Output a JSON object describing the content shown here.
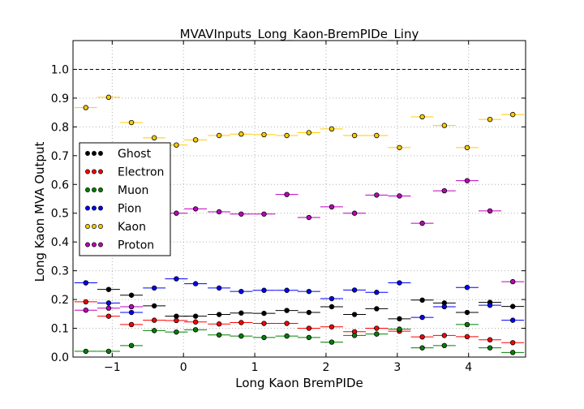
{
  "chart_data": {
    "type": "scatter",
    "title": "MVAVInputs_Long_Kaon-BremPIDe_Liny",
    "xlabel": "Long Kaon BremPIDe",
    "ylabel": "Long Kaon MVA Output",
    "xlim": [
      -1.55,
      4.8
    ],
    "ylim": [
      0.0,
      1.1
    ],
    "x_ticks": [
      -1,
      0,
      1,
      2,
      3,
      4
    ],
    "x_tick_labels": [
      "−1",
      "0",
      "1",
      "2",
      "3",
      "4"
    ],
    "y_ticks": [
      0.0,
      0.1,
      0.2,
      0.3,
      0.4,
      0.5,
      0.6,
      0.7,
      0.8,
      0.9,
      1.0
    ],
    "y_tick_labels": [
      "0.0",
      "0.1",
      "0.2",
      "0.3",
      "0.4",
      "0.5",
      "0.6",
      "0.7",
      "0.8",
      "0.9",
      "1.0"
    ],
    "grid": true,
    "legend_position": "left",
    "reference_line": 1.0,
    "bin_half_width": 0.159,
    "x": [
      -1.37,
      -1.05,
      -0.73,
      -0.41,
      -0.1,
      0.17,
      0.5,
      0.81,
      1.13,
      1.45,
      1.76,
      2.08,
      2.4,
      2.71,
      3.03,
      3.35,
      3.66,
      3.98,
      4.3,
      4.62
    ],
    "series": [
      {
        "name": "Ghost",
        "color": "#000000",
        "values": [
          0.258,
          0.235,
          0.215,
          0.178,
          0.142,
          0.142,
          0.148,
          0.153,
          0.152,
          0.162,
          0.155,
          0.175,
          0.148,
          0.168,
          0.133,
          0.198,
          0.188,
          0.155,
          0.19,
          0.176
        ]
      },
      {
        "name": "Electron",
        "color": "#ff0000",
        "values": [
          0.192,
          0.142,
          0.113,
          0.128,
          0.127,
          0.122,
          0.115,
          0.12,
          0.117,
          0.117,
          0.1,
          0.105,
          0.088,
          0.1,
          0.09,
          0.07,
          0.075,
          0.071,
          0.06,
          0.05
        ]
      },
      {
        "name": "Muon",
        "color": "#008000",
        "values": [
          0.02,
          0.02,
          0.04,
          0.092,
          0.087,
          0.095,
          0.077,
          0.073,
          0.068,
          0.073,
          0.068,
          0.052,
          0.075,
          0.08,
          0.097,
          0.032,
          0.04,
          0.113,
          0.032,
          0.016
        ]
      },
      {
        "name": "Pion",
        "color": "#0000ff",
        "values": [
          0.258,
          0.188,
          0.155,
          0.24,
          0.272,
          0.255,
          0.24,
          0.228,
          0.232,
          0.232,
          0.228,
          0.203,
          0.233,
          0.225,
          0.258,
          0.138,
          0.175,
          0.242,
          0.18,
          0.128
        ]
      },
      {
        "name": "Kaon",
        "color": "#ffcc00",
        "values": [
          0.867,
          0.903,
          0.815,
          0.762,
          0.737,
          0.755,
          0.77,
          0.775,
          0.773,
          0.77,
          0.78,
          0.793,
          0.77,
          0.77,
          0.728,
          0.835,
          0.805,
          0.728,
          0.826,
          0.843
        ]
      },
      {
        "name": "Proton",
        "color": "#bf00bf",
        "values": [
          0.163,
          0.17,
          0.175,
          0.485,
          0.5,
          0.515,
          0.505,
          0.497,
          0.497,
          0.565,
          0.485,
          0.522,
          0.5,
          0.563,
          0.56,
          0.465,
          0.578,
          0.613,
          0.508,
          0.262
        ]
      }
    ]
  }
}
